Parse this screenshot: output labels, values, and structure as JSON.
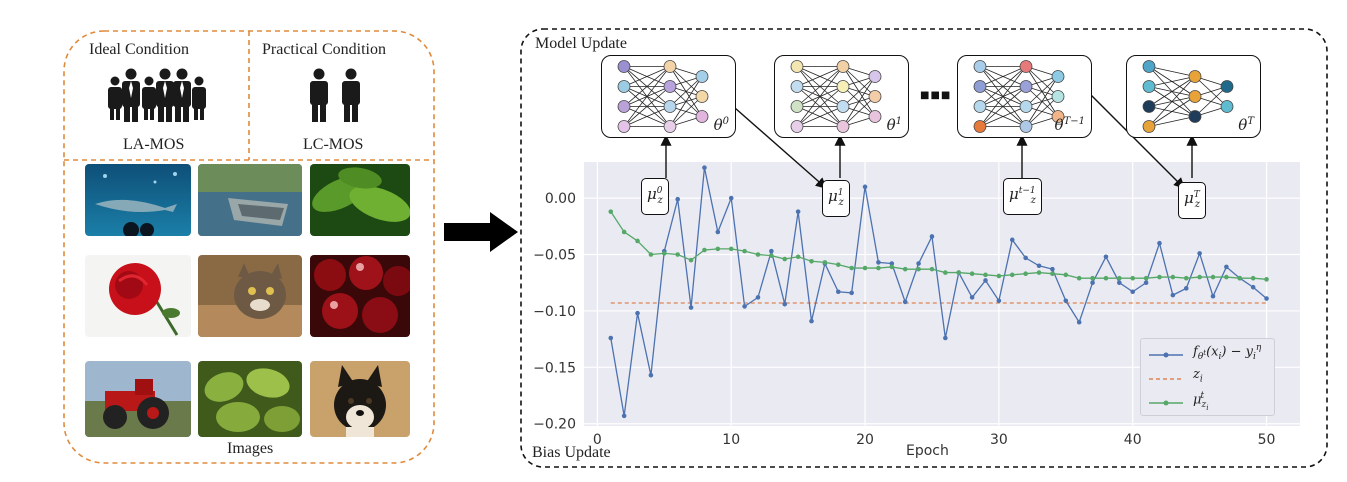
{
  "left_panel": {
    "ideal_title": "Ideal Condition",
    "practical_title": "Practical Condition",
    "la_mos": "LA-MOS",
    "lc_mos": "LC-MOS",
    "images_label": "Images",
    "image_tiles": [
      "shark-aquarium-photo",
      "boat-lake-photo",
      "green-leaves-photo",
      "red-rose-photo",
      "cat-photo",
      "cherries-photo",
      "tractor-photo",
      "green-fruit-photo",
      "shiba-dog-photo"
    ]
  },
  "right_panel": {
    "model_update": "Model Update",
    "bias_update": "Bias Update",
    "ellipsis": "■■■",
    "networks": [
      {
        "theta": "θ",
        "sup": "0",
        "mu_sup": "0"
      },
      {
        "theta": "θ",
        "sup": "1",
        "mu_sup": "1"
      },
      {
        "theta": "θ",
        "sup": "T−1",
        "mu_sup": "t−1"
      },
      {
        "theta": "θ",
        "sup": "T",
        "mu_sup": "T"
      }
    ],
    "mu_base": "μ",
    "mu_sub": "z"
  },
  "colors": {
    "dashed_orange": "#e08a3c",
    "series_blue": "#4c72b0",
    "series_orange": "#dd8452",
    "series_green": "#55a868",
    "plot_bg": "#eaeaf2"
  },
  "chart_data": {
    "type": "line",
    "xlabel": "Epoch",
    "ylabel": "",
    "xlim": [
      -1,
      52.5
    ],
    "ylim": [
      -0.202,
      0.032
    ],
    "xticks": [
      0,
      10,
      20,
      30,
      40,
      50
    ],
    "yticks": [
      0.0,
      -0.05,
      -0.1,
      -0.15,
      -0.2
    ],
    "ytick_labels": [
      "0.00",
      "−0.05",
      "−0.10",
      "−0.15",
      "−0.20"
    ],
    "grid": true,
    "legend_position": "lower-right",
    "x": [
      1,
      2,
      3,
      4,
      5,
      6,
      7,
      8,
      9,
      10,
      11,
      12,
      13,
      14,
      15,
      16,
      17,
      18,
      19,
      20,
      21,
      22,
      23,
      24,
      25,
      26,
      27,
      28,
      29,
      30,
      31,
      32,
      33,
      34,
      35,
      36,
      37,
      38,
      39,
      40,
      41,
      42,
      43,
      44,
      45,
      46,
      47,
      48,
      49,
      50
    ],
    "series": [
      {
        "name_parts": [
          "f",
          "θ",
          "t",
          "(x",
          "i",
          ") − y",
          "i",
          "η"
        ],
        "values": [
          -0.124,
          -0.193,
          -0.102,
          -0.157,
          -0.047,
          -0.001,
          -0.097,
          0.027,
          -0.03,
          0.0,
          -0.096,
          -0.088,
          -0.047,
          -0.094,
          -0.012,
          -0.109,
          -0.058,
          -0.083,
          -0.084,
          0.01,
          -0.057,
          -0.058,
          -0.092,
          -0.058,
          -0.034,
          -0.124,
          -0.066,
          -0.088,
          -0.073,
          -0.091,
          -0.037,
          -0.053,
          -0.06,
          -0.063,
          -0.091,
          -0.11,
          -0.075,
          -0.052,
          -0.075,
          -0.083,
          -0.075,
          -0.04,
          -0.086,
          -0.08,
          -0.049,
          -0.087,
          -0.061,
          -0.071,
          -0.079,
          -0.089
        ]
      },
      {
        "name_parts": [
          "z",
          "i"
        ],
        "values": [
          -0.093,
          -0.093,
          -0.093,
          -0.093,
          -0.093,
          -0.093,
          -0.093,
          -0.093,
          -0.093,
          -0.093,
          -0.093,
          -0.093,
          -0.093,
          -0.093,
          -0.093,
          -0.093,
          -0.093,
          -0.093,
          -0.093,
          -0.093,
          -0.093,
          -0.093,
          -0.093,
          -0.093,
          -0.093,
          -0.093,
          -0.093,
          -0.093,
          -0.093,
          -0.093,
          -0.093,
          -0.093,
          -0.093,
          -0.093,
          -0.093,
          -0.093,
          -0.093,
          -0.093,
          -0.093,
          -0.093,
          -0.093,
          -0.093,
          -0.093,
          -0.093,
          -0.093,
          -0.093,
          -0.093,
          -0.093,
          -0.093,
          -0.093
        ]
      },
      {
        "name_parts": [
          "μ",
          "z",
          "i",
          "t"
        ],
        "values": [
          -0.012,
          -0.03,
          -0.038,
          -0.05,
          -0.049,
          -0.05,
          -0.055,
          -0.046,
          -0.045,
          -0.045,
          -0.047,
          -0.05,
          -0.051,
          -0.054,
          -0.052,
          -0.056,
          -0.057,
          -0.059,
          -0.062,
          -0.062,
          -0.062,
          -0.061,
          -0.063,
          -0.063,
          -0.063,
          -0.066,
          -0.066,
          -0.067,
          -0.068,
          -0.069,
          -0.068,
          -0.067,
          -0.066,
          -0.067,
          -0.068,
          -0.071,
          -0.071,
          -0.071,
          -0.071,
          -0.071,
          -0.071,
          -0.07,
          -0.07,
          -0.071,
          -0.07,
          -0.07,
          -0.07,
          -0.071,
          -0.071,
          -0.072
        ]
      }
    ]
  }
}
